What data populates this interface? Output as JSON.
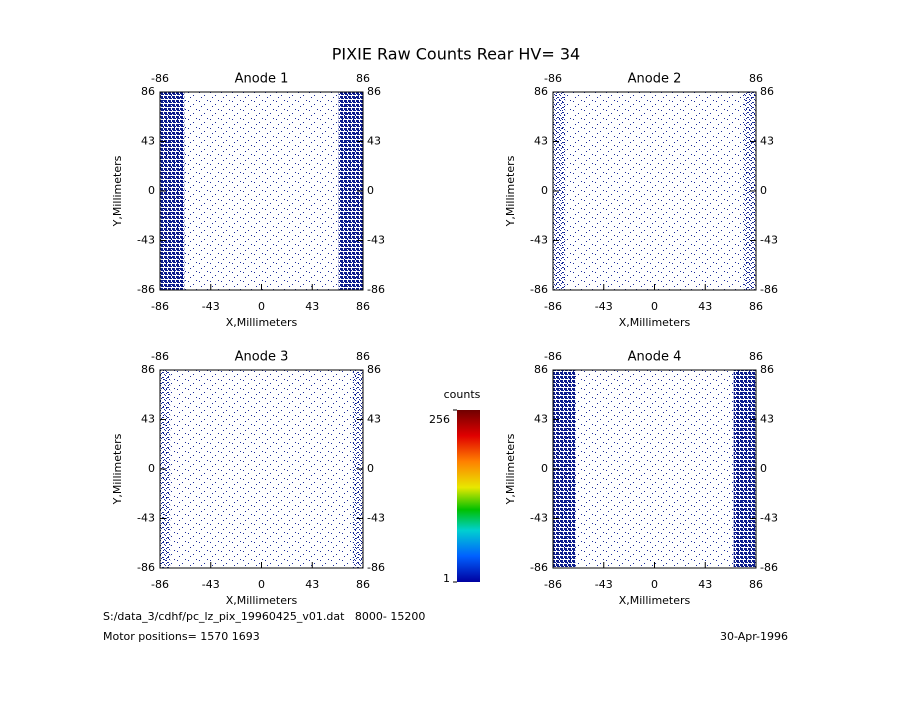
{
  "title": "PIXIE Raw Counts Rear HV= 34",
  "chart_data": [
    {
      "type": "heatmap",
      "title": "Anode 1",
      "xlabel": "X,Millimeters",
      "ylabel": "Y,Millimeters",
      "xlim": [
        -86,
        86
      ],
      "ylim": [
        -86,
        86
      ],
      "xticks": [
        -86,
        -43,
        0,
        43,
        86
      ],
      "yticks": [
        -86,
        -43,
        0,
        43,
        86
      ],
      "x2ticks": [
        -86,
        86
      ]
    },
    {
      "type": "heatmap",
      "title": "Anode 2",
      "xlabel": "X,Millimeters",
      "ylabel": "Y,Millimeters",
      "xlim": [
        -86,
        86
      ],
      "ylim": [
        -86,
        86
      ],
      "xticks": [
        -86,
        -43,
        0,
        43,
        86
      ],
      "yticks": [
        -86,
        -43,
        0,
        43,
        86
      ],
      "x2ticks": [
        -86,
        86
      ]
    },
    {
      "type": "heatmap",
      "title": "Anode 3",
      "xlabel": "X,Millimeters",
      "ylabel": "Y,Millimeters",
      "xlim": [
        -86,
        86
      ],
      "ylim": [
        -86,
        86
      ],
      "xticks": [
        -86,
        -43,
        0,
        43,
        86
      ],
      "yticks": [
        -86,
        -43,
        0,
        43,
        86
      ],
      "x2ticks": [
        -86,
        86
      ]
    },
    {
      "type": "heatmap",
      "title": "Anode 4",
      "xlabel": "X,Millimeters",
      "ylabel": "Y,Millimeters",
      "xlim": [
        -86,
        86
      ],
      "ylim": [
        -86,
        86
      ],
      "xticks": [
        -86,
        -43,
        0,
        43,
        86
      ],
      "yticks": [
        -86,
        -43,
        0,
        43,
        86
      ],
      "x2ticks": [
        -86,
        86
      ]
    }
  ],
  "colorbar": {
    "label": "counts",
    "lim": [
      1,
      256
    ],
    "ticks": [
      1,
      256
    ]
  },
  "footer": {
    "file": "S:/data_3/cdhf/pc_lz_pix_19960425_v01.dat   8000- 15200",
    "motor": "Motor positions= 1570 1693",
    "date": "30-Apr-1996"
  }
}
